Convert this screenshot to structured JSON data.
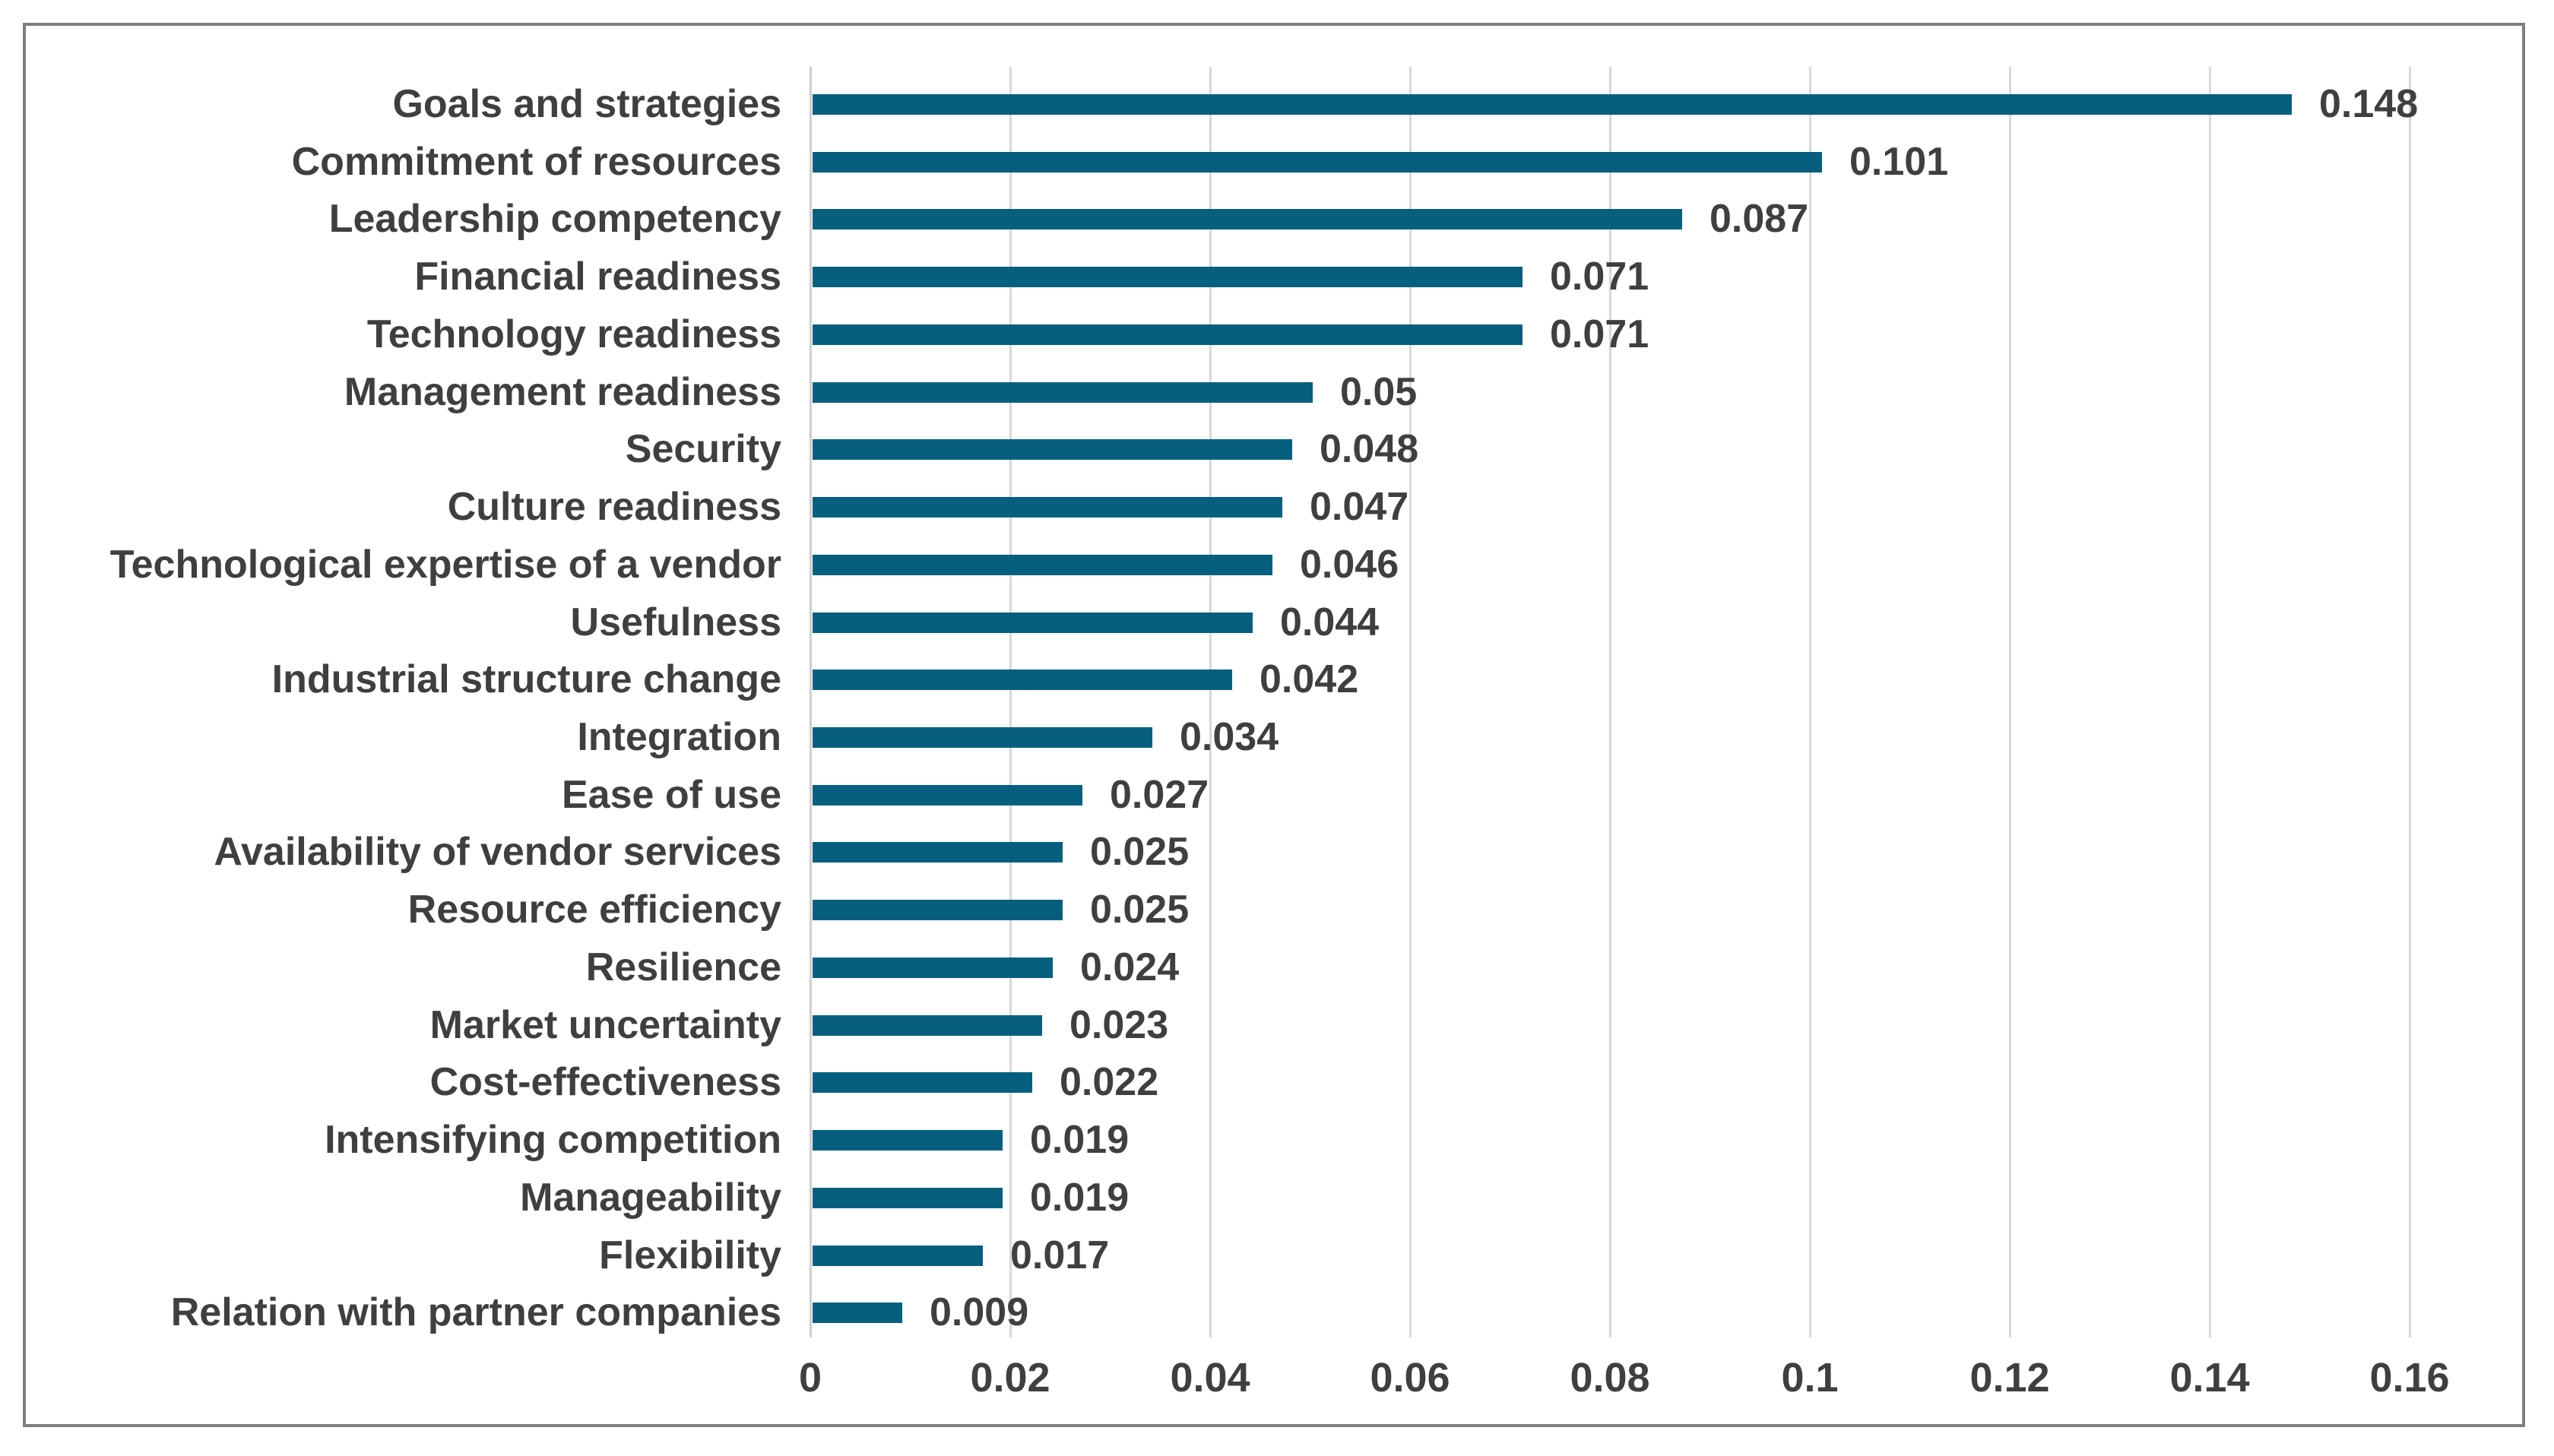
{
  "chart_data": {
    "type": "bar",
    "orientation": "horizontal",
    "title": "",
    "xlabel": "",
    "ylabel": "",
    "xlim": [
      0,
      0.17
    ],
    "grid": "vertical",
    "legend": "none",
    "categories": [
      "Goals and strategies",
      "Commitment of resources",
      "Leadership competency",
      "Financial readiness",
      "Technology readiness",
      "Management readiness",
      "Security",
      "Culture readiness",
      "Technological expertise of a vendor",
      "Usefulness",
      "Industrial structure change",
      "Integration",
      "Ease of use",
      "Availability of vendor services",
      "Resource efficiency",
      "Resilience",
      "Market uncertainty",
      "Cost-effectiveness",
      "Intensifying competition",
      "Manageability",
      "Flexibility",
      "Relation with partner companies"
    ],
    "values": [
      0.148,
      0.101,
      0.087,
      0.071,
      0.071,
      0.05,
      0.048,
      0.047,
      0.046,
      0.044,
      0.042,
      0.034,
      0.027,
      0.025,
      0.025,
      0.024,
      0.023,
      0.022,
      0.019,
      0.019,
      0.017,
      0.009
    ],
    "value_labels": [
      "0.148",
      "0.101",
      "0.087",
      "0.071",
      "0.071",
      "0.05",
      "0.048",
      "0.047",
      "0.046",
      "0.044",
      "0.042",
      "0.034",
      "0.027",
      "0.025",
      "0.025",
      "0.024",
      "0.023",
      "0.022",
      "0.019",
      "0.019",
      "0.017",
      "0.009"
    ],
    "x_tick_labels": [
      "0",
      "0.02",
      "0.04",
      "0.06",
      "0.08",
      "0.1",
      "0.12",
      "0.14",
      "0.16"
    ],
    "x_tick_values": [
      0,
      0.02,
      0.04,
      0.06,
      0.08,
      0.1,
      0.12,
      0.14,
      0.16
    ],
    "colors": {
      "bar": "#065f7e",
      "text": "#3f3f3f",
      "gridline": "#d8d8d8",
      "frame_border": "#7e7e7e",
      "background": "#ffffff"
    }
  }
}
